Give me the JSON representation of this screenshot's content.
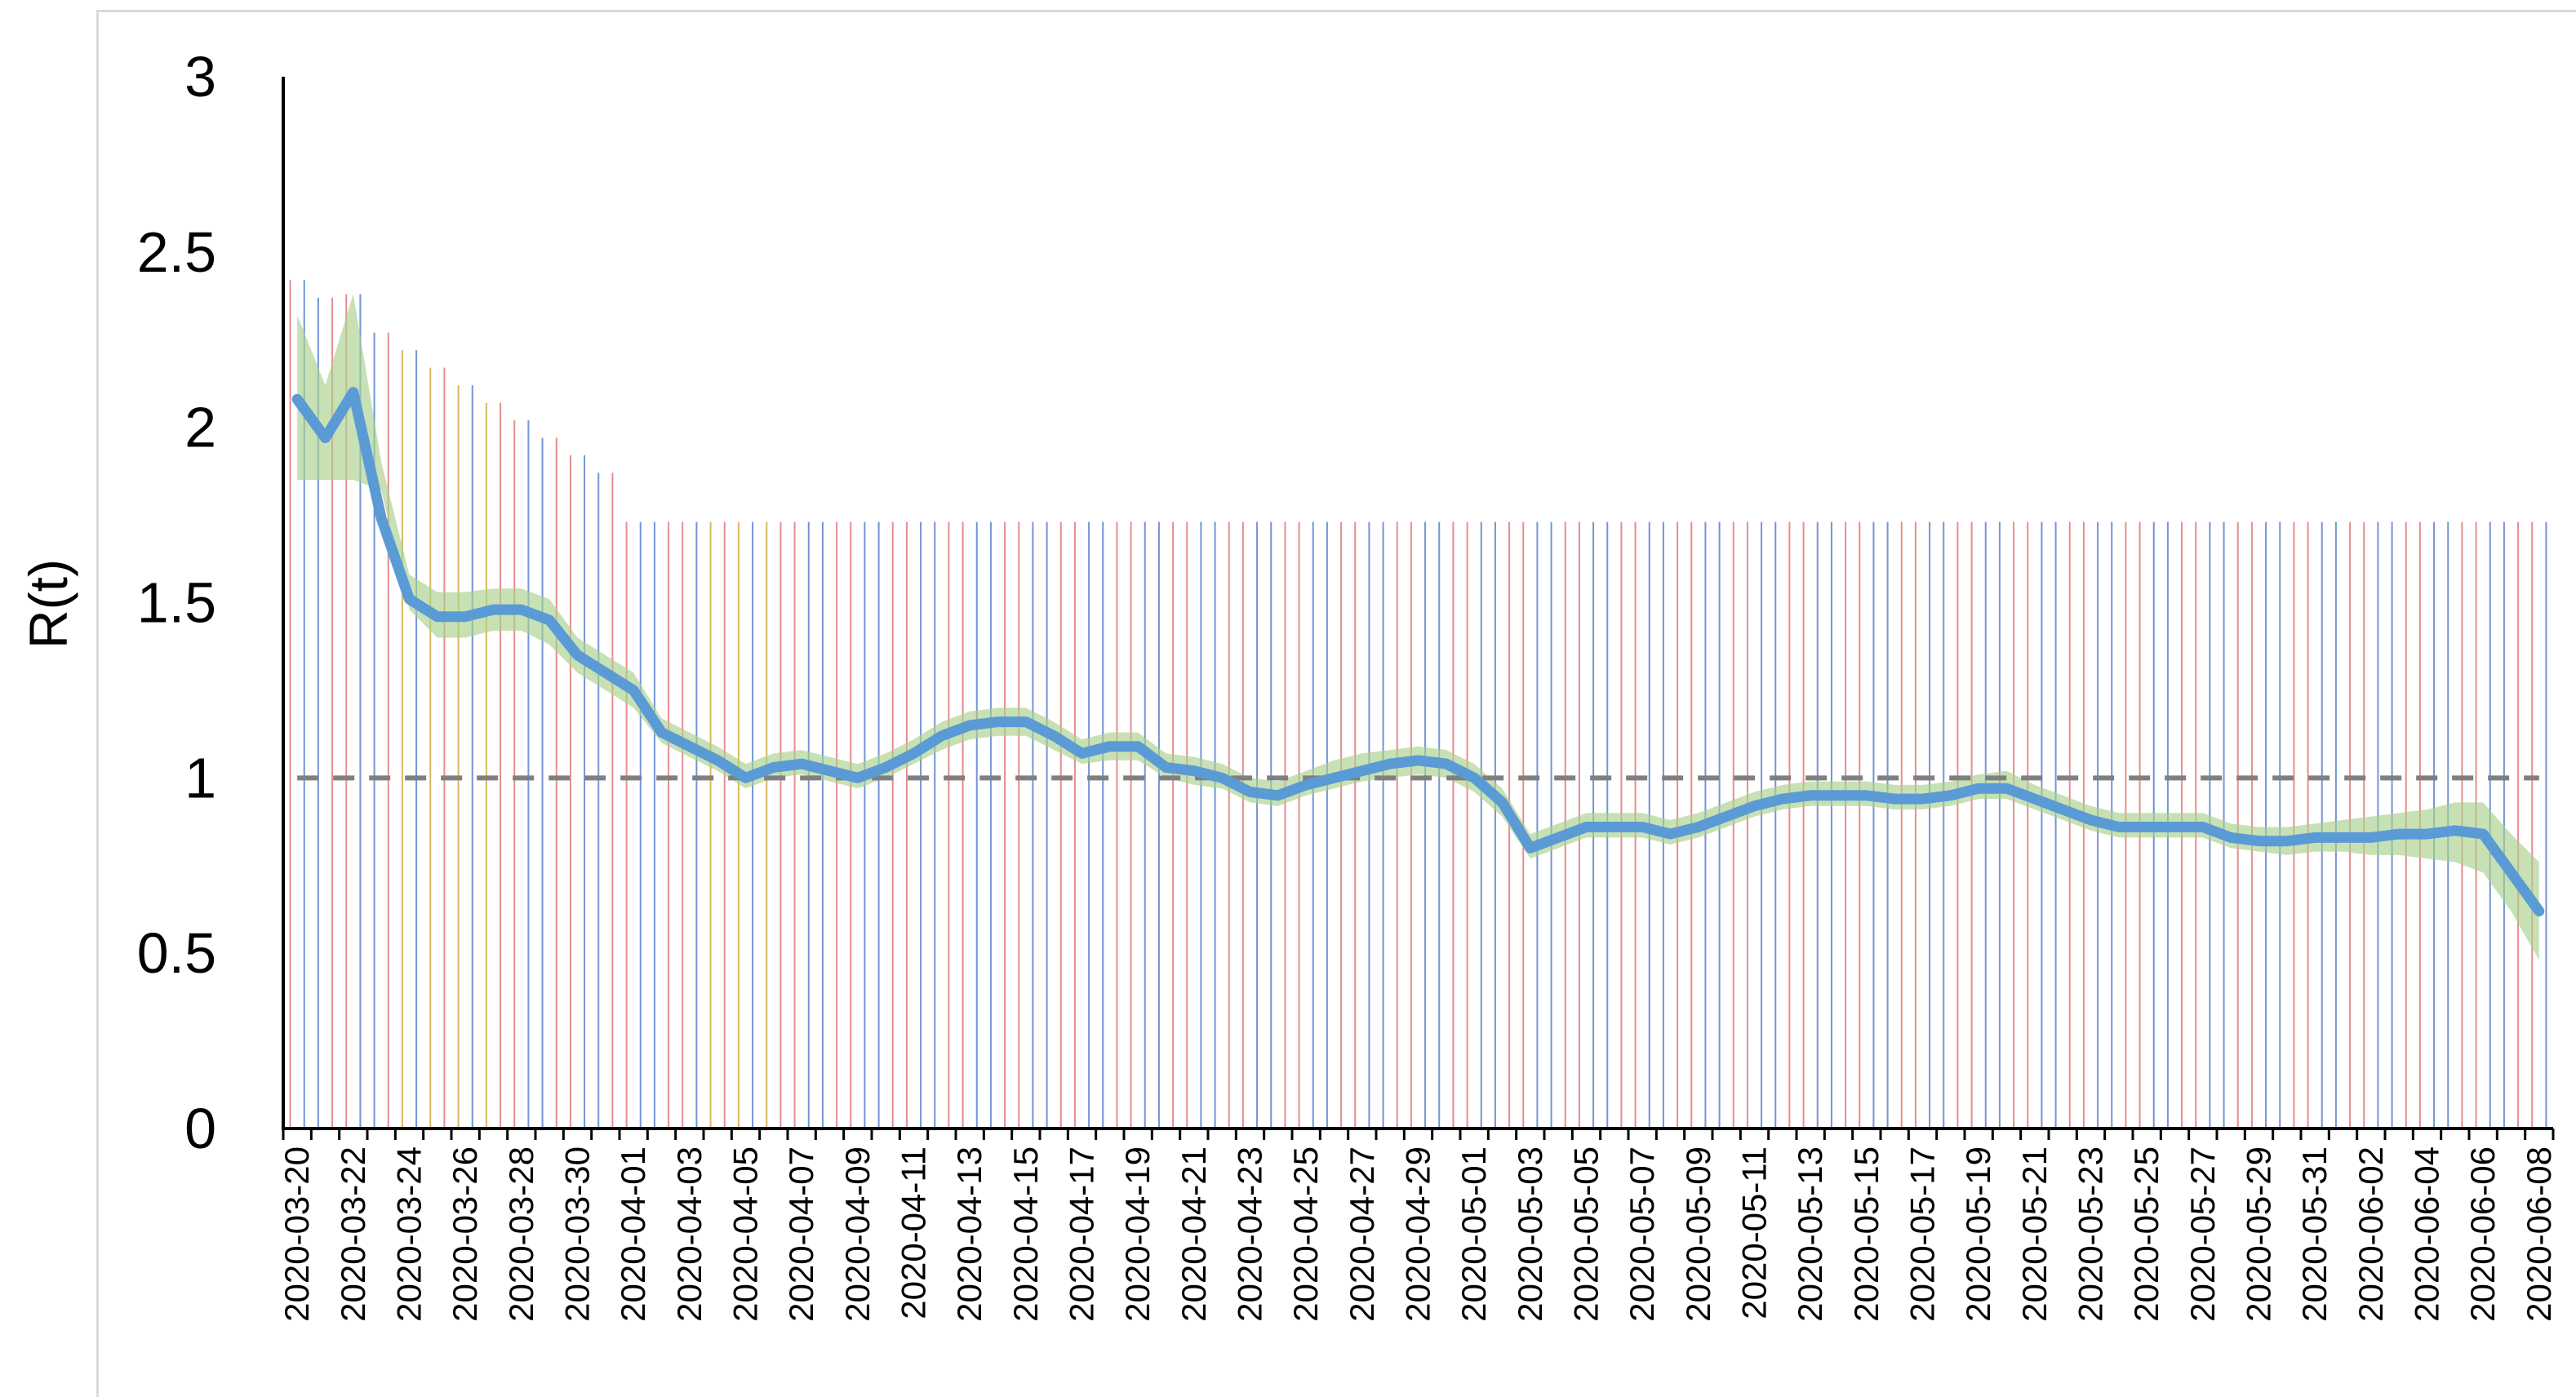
{
  "chart_data": {
    "type": "line",
    "title": "",
    "xlabel": "",
    "ylabel": "R(t)",
    "ylim": [
      0,
      3
    ],
    "yticks": [
      "0",
      "0.5",
      "1",
      "1.5",
      "2",
      "2.5",
      "3"
    ],
    "x_start": "2020-03-20",
    "x_end": "2020-06-08",
    "x_tick_labels": [
      "2020-03-20",
      "2020-03-22",
      "2020-03-24",
      "2020-03-26",
      "2020-03-28",
      "2020-03-30",
      "2020-04-01",
      "2020-04-03",
      "2020-04-05",
      "2020-04-07",
      "2020-04-09",
      "2020-04-11",
      "2020-04-13",
      "2020-04-15",
      "2020-04-17",
      "2020-04-19",
      "2020-04-21",
      "2020-04-23",
      "2020-04-25",
      "2020-04-27",
      "2020-04-29",
      "2020-05-01",
      "2020-05-03",
      "2020-05-05",
      "2020-05-07",
      "2020-05-09",
      "2020-05-11",
      "2020-05-13",
      "2020-05-15",
      "2020-05-17",
      "2020-05-19",
      "2020-05-21",
      "2020-05-23",
      "2020-05-25",
      "2020-05-27",
      "2020-05-29",
      "2020-05-31",
      "2020-06-02",
      "2020-06-04",
      "2020-06-06",
      "2020-06-08"
    ],
    "reference_line": {
      "y": 1,
      "style": "dashed",
      "color": "#7f7f7f"
    },
    "colors": {
      "line": "#5b9bd5",
      "band": "#a9d18e",
      "axis": "#000000",
      "vline_red": "#e06666",
      "vline_blue": "#4472c4",
      "vline_gold": "#c9a227"
    },
    "series": [
      {
        "x": [
          "2020-03-20",
          "2020-03-21",
          "2020-03-22",
          "2020-03-23",
          "2020-03-24",
          "2020-03-25",
          "2020-03-26",
          "2020-03-27",
          "2020-03-28",
          "2020-03-29",
          "2020-03-30",
          "2020-03-31",
          "2020-04-01",
          "2020-04-02",
          "2020-04-03",
          "2020-04-04",
          "2020-04-05",
          "2020-04-06",
          "2020-04-07",
          "2020-04-08",
          "2020-04-09",
          "2020-04-10",
          "2020-04-11",
          "2020-04-12",
          "2020-04-13",
          "2020-04-14",
          "2020-04-15",
          "2020-04-16",
          "2020-04-17",
          "2020-04-18",
          "2020-04-19",
          "2020-04-20",
          "2020-04-21",
          "2020-04-22",
          "2020-04-23",
          "2020-04-24",
          "2020-04-25",
          "2020-04-26",
          "2020-04-27",
          "2020-04-28",
          "2020-04-29",
          "2020-04-30",
          "2020-05-01",
          "2020-05-02",
          "2020-05-03",
          "2020-05-04",
          "2020-05-05",
          "2020-05-06",
          "2020-05-07",
          "2020-05-08",
          "2020-05-09",
          "2020-05-10",
          "2020-05-11",
          "2020-05-12",
          "2020-05-13",
          "2020-05-14",
          "2020-05-15",
          "2020-05-16",
          "2020-05-17",
          "2020-05-18",
          "2020-05-19",
          "2020-05-20",
          "2020-05-21",
          "2020-05-22",
          "2020-05-23",
          "2020-05-24",
          "2020-05-25",
          "2020-05-26",
          "2020-05-27",
          "2020-05-28",
          "2020-05-29",
          "2020-05-30",
          "2020-05-31",
          "2020-06-01",
          "2020-06-02",
          "2020-06-03",
          "2020-06-04",
          "2020-06-05",
          "2020-06-06",
          "2020-06-07",
          "2020-06-08"
        ],
        "values": [
          2.08,
          1.97,
          2.1,
          1.74,
          1.51,
          1.46,
          1.46,
          1.48,
          1.48,
          1.45,
          1.35,
          1.3,
          1.25,
          1.13,
          1.09,
          1.05,
          1.0,
          1.03,
          1.04,
          1.02,
          1.0,
          1.03,
          1.07,
          1.12,
          1.15,
          1.16,
          1.16,
          1.12,
          1.07,
          1.09,
          1.09,
          1.03,
          1.02,
          1.0,
          0.96,
          0.95,
          0.98,
          1.0,
          1.02,
          1.04,
          1.05,
          1.04,
          1.0,
          0.93,
          0.8,
          0.83,
          0.86,
          0.86,
          0.86,
          0.84,
          0.86,
          0.89,
          0.92,
          0.94,
          0.95,
          0.95,
          0.95,
          0.94,
          0.94,
          0.95,
          0.97,
          0.97,
          0.94,
          0.91,
          0.88,
          0.86,
          0.86,
          0.86,
          0.86,
          0.83,
          0.82,
          0.82,
          0.83,
          0.83,
          0.83,
          0.84,
          0.84,
          0.85,
          0.84,
          0.73,
          0.62
        ],
        "lower": [
          1.85,
          1.85,
          1.85,
          1.82,
          1.48,
          1.4,
          1.4,
          1.42,
          1.42,
          1.38,
          1.3,
          1.25,
          1.2,
          1.1,
          1.06,
          1.02,
          0.97,
          1.0,
          1.01,
          0.99,
          0.97,
          1.0,
          1.04,
          1.08,
          1.11,
          1.12,
          1.12,
          1.08,
          1.04,
          1.05,
          1.05,
          1.0,
          0.98,
          0.97,
          0.93,
          0.92,
          0.95,
          0.97,
          0.99,
          1.0,
          1.01,
          1.0,
          0.96,
          0.89,
          0.77,
          0.8,
          0.83,
          0.83,
          0.83,
          0.81,
          0.83,
          0.86,
          0.89,
          0.91,
          0.92,
          0.92,
          0.92,
          0.91,
          0.91,
          0.92,
          0.94,
          0.94,
          0.91,
          0.88,
          0.85,
          0.83,
          0.83,
          0.83,
          0.83,
          0.8,
          0.79,
          0.78,
          0.79,
          0.79,
          0.78,
          0.78,
          0.77,
          0.76,
          0.73,
          0.62,
          0.48
        ],
        "upper": [
          2.32,
          2.12,
          2.38,
          1.9,
          1.58,
          1.53,
          1.53,
          1.54,
          1.54,
          1.51,
          1.4,
          1.35,
          1.3,
          1.17,
          1.13,
          1.09,
          1.04,
          1.07,
          1.08,
          1.06,
          1.04,
          1.07,
          1.11,
          1.16,
          1.19,
          1.2,
          1.2,
          1.16,
          1.11,
          1.13,
          1.13,
          1.07,
          1.06,
          1.04,
          1.0,
          0.99,
          1.02,
          1.05,
          1.07,
          1.08,
          1.09,
          1.08,
          1.04,
          0.97,
          0.84,
          0.87,
          0.9,
          0.9,
          0.9,
          0.88,
          0.9,
          0.93,
          0.96,
          0.98,
          0.99,
          0.99,
          0.99,
          0.98,
          0.98,
          0.99,
          1.01,
          1.02,
          0.98,
          0.95,
          0.92,
          0.9,
          0.9,
          0.9,
          0.9,
          0.87,
          0.86,
          0.86,
          0.87,
          0.88,
          0.89,
          0.9,
          0.91,
          0.93,
          0.93,
          0.84,
          0.76
        ]
      }
    ],
    "grid": false,
    "legend": "none"
  }
}
